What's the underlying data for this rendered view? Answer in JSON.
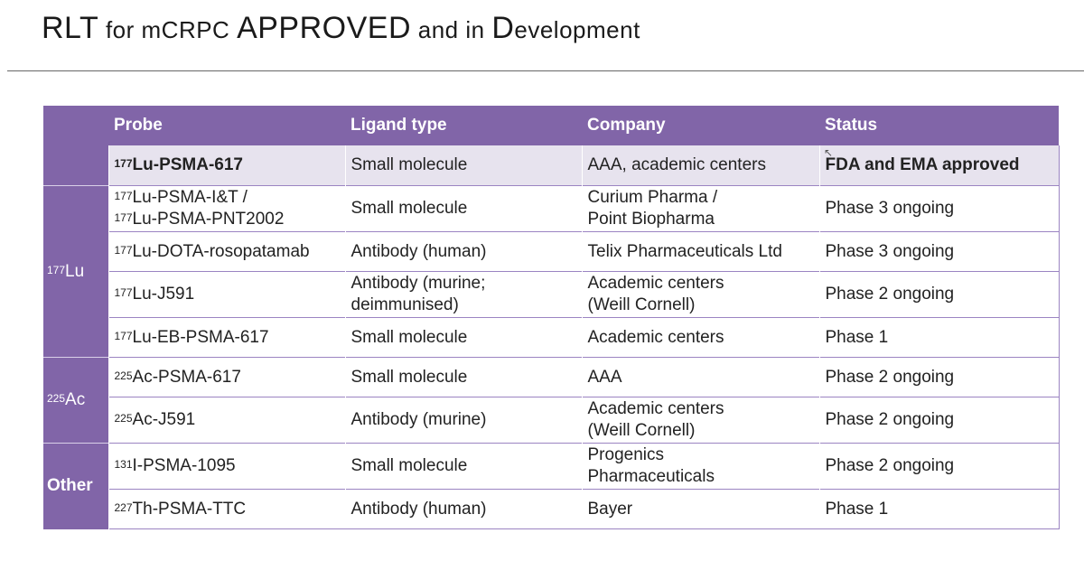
{
  "slide": {
    "title_parts": [
      {
        "text": "RLT",
        "small": false
      },
      {
        "text": " for mCRPC ",
        "small": true
      },
      {
        "text": "APPROVED",
        "small": false
      },
      {
        "text": " and in ",
        "small": true
      },
      {
        "text": "D",
        "small": false
      },
      {
        "text": "evelopment",
        "small": true
      }
    ]
  },
  "table": {
    "headers": {
      "probe": "Probe",
      "ligand": "Ligand type",
      "company": "Company",
      "status": "Status"
    },
    "groups": {
      "lu": {
        "sup": "177",
        "name": "Lu"
      },
      "ac": {
        "sup": "225",
        "name": "Ac"
      },
      "other": {
        "name": "Other"
      }
    },
    "rows": [
      {
        "probe_sup": "177",
        "probe": "Lu-PSMA-617",
        "ligand": "Small molecule",
        "company": "AAA, academic centers",
        "status": "FDA and EMA approved"
      },
      {
        "probe_sup": "177",
        "probe": "Lu-PSMA-I&T /",
        "probe_sup_2": "177",
        "probe_2": "Lu-PSMA-PNT2002",
        "ligand": "Small molecule",
        "company": "Curium Pharma /",
        "company_2": "Point Biopharma",
        "status": "Phase 3 ongoing"
      },
      {
        "probe_sup": "177",
        "probe": "Lu-DOTA-rosopatamab",
        "ligand": "Antibody (human)",
        "company": "Telix Pharmaceuticals Ltd",
        "status": "Phase 3 ongoing"
      },
      {
        "probe_sup": "177",
        "probe": "Lu-J591",
        "ligand": "Antibody (murine;",
        "ligand_2": "deimmunised)",
        "company": "Academic centers",
        "company_2": "(Weill Cornell)",
        "status": "Phase 2 ongoing"
      },
      {
        "probe_sup": "177",
        "probe": "Lu-EB-PSMA-617",
        "ligand": "Small molecule",
        "company": "Academic centers",
        "status": "Phase 1"
      },
      {
        "probe_sup": "225",
        "probe": "Ac-PSMA-617",
        "ligand": "Small molecule",
        "company": "AAA",
        "status": "Phase 2 ongoing"
      },
      {
        "probe_sup": "225",
        "probe": "Ac-J591",
        "ligand": "Antibody (murine)",
        "company": "Academic centers",
        "company_2": "(Weill Cornell)",
        "status": "Phase 2 ongoing"
      },
      {
        "probe_sup": "131",
        "probe": "I-PSMA-1095",
        "ligand": "Small molecule",
        "company": "Progenics",
        "company_2": "Pharmaceuticals",
        "status": "Phase 2 ongoing"
      },
      {
        "probe_sup": "227",
        "probe": "Th-PSMA-TTC",
        "ligand": "Antibody (human)",
        "company": "Bayer",
        "status": "Phase 1"
      }
    ]
  },
  "colors": {
    "header_purple": "#8165a8",
    "approved_row_bg": "#e7e3ee",
    "row_divider": "#9b84c2"
  }
}
